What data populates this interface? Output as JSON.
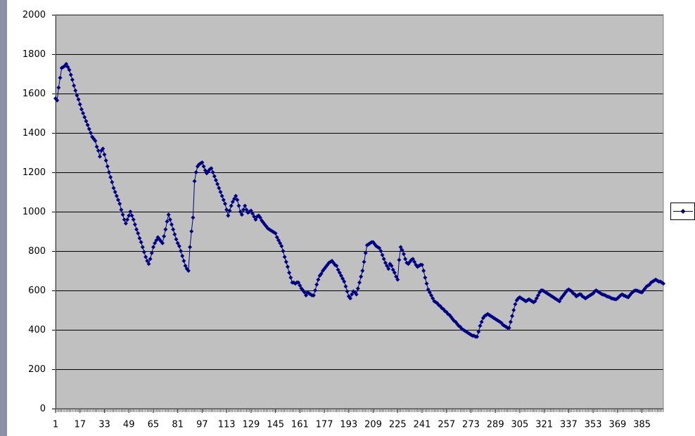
{
  "chart_data": {
    "type": "line",
    "color": "#000080",
    "grid": true,
    "xlim": [
      1,
      399
    ],
    "xticks": [
      1,
      17,
      33,
      49,
      65,
      81,
      97,
      113,
      129,
      145,
      161,
      177,
      193,
      209,
      225,
      241,
      257,
      273,
      289,
      305,
      321,
      337,
      353,
      369,
      385
    ],
    "ylim": [
      0,
      2000
    ],
    "yticks": [
      0,
      200,
      400,
      600,
      800,
      1000,
      1200,
      1400,
      1600,
      1800,
      2000
    ],
    "x": [
      1,
      2,
      3,
      4,
      5,
      6,
      7,
      8,
      9,
      10,
      11,
      12,
      13,
      14,
      15,
      16,
      17,
      18,
      19,
      20,
      21,
      22,
      23,
      24,
      25,
      26,
      27,
      28,
      29,
      30,
      31,
      32,
      33,
      34,
      35,
      36,
      37,
      38,
      39,
      40,
      41,
      42,
      43,
      44,
      45,
      46,
      47,
      48,
      49,
      50,
      51,
      52,
      53,
      54,
      55,
      56,
      57,
      58,
      59,
      60,
      61,
      62,
      63,
      64,
      65,
      66,
      67,
      68,
      69,
      70,
      71,
      72,
      73,
      74,
      75,
      76,
      77,
      78,
      79,
      80,
      81,
      82,
      83,
      84,
      85,
      86,
      87,
      88,
      89,
      90,
      91,
      92,
      93,
      94,
      95,
      96,
      97,
      98,
      99,
      100,
      101,
      102,
      103,
      104,
      105,
      106,
      107,
      108,
      109,
      110,
      111,
      112,
      113,
      114,
      115,
      116,
      117,
      118,
      119,
      120,
      121,
      122,
      123,
      124,
      125,
      126,
      127,
      128,
      129,
      130,
      131,
      132,
      133,
      134,
      135,
      136,
      137,
      138,
      139,
      140,
      141,
      142,
      143,
      144,
      145,
      146,
      147,
      148,
      149,
      150,
      151,
      152,
      153,
      154,
      155,
      156,
      157,
      158,
      159,
      160,
      161,
      162,
      163,
      164,
      165,
      166,
      167,
      168,
      169,
      170,
      171,
      172,
      173,
      174,
      175,
      176,
      177,
      178,
      179,
      180,
      181,
      182,
      183,
      184,
      185,
      186,
      187,
      188,
      189,
      190,
      191,
      192,
      193,
      194,
      195,
      196,
      197,
      198,
      199,
      200,
      201,
      202,
      203,
      204,
      205,
      206,
      207,
      208,
      209,
      210,
      211,
      212,
      213,
      214,
      215,
      216,
      217,
      218,
      219,
      220,
      221,
      222,
      223,
      224,
      225,
      226,
      227,
      228,
      229,
      230,
      231,
      232,
      233,
      234,
      235,
      236,
      237,
      238,
      239,
      240,
      241,
      242,
      243,
      244,
      245,
      246,
      247,
      248,
      249,
      250,
      251,
      252,
      253,
      254,
      255,
      256,
      257,
      258,
      259,
      260,
      261,
      262,
      263,
      264,
      265,
      266,
      267,
      268,
      269,
      270,
      271,
      272,
      273,
      274,
      275,
      276,
      277,
      278,
      279,
      280,
      281,
      282,
      283,
      284,
      285,
      286,
      287,
      288,
      289,
      290,
      291,
      292,
      293,
      294,
      295,
      296,
      297,
      298,
      299,
      300,
      301,
      302,
      303,
      304,
      305,
      306,
      307,
      308,
      309,
      310,
      311,
      312,
      313,
      314,
      315,
      316,
      317,
      318,
      319,
      320,
      321,
      322,
      323,
      324,
      325,
      326,
      327,
      328,
      329,
      330,
      331,
      332,
      333,
      334,
      335,
      336,
      337,
      338,
      339,
      340,
      341,
      342,
      343,
      344,
      345,
      346,
      347,
      348,
      349,
      350,
      351,
      352,
      353,
      354,
      355,
      356,
      357,
      358,
      359,
      360,
      361,
      362,
      363,
      364,
      365,
      366,
      367,
      368,
      369,
      370,
      371,
      372,
      373,
      374,
      375,
      376,
      377,
      378,
      379,
      380,
      381,
      382,
      383,
      384,
      385,
      386,
      387,
      388,
      389,
      390,
      391,
      392,
      393,
      394,
      395,
      396,
      397,
      398,
      399
    ],
    "values": [
      1575,
      1565,
      1630,
      1680,
      1730,
      1735,
      1740,
      1750,
      1735,
      1720,
      1695,
      1670,
      1640,
      1615,
      1590,
      1570,
      1545,
      1520,
      1500,
      1480,
      1460,
      1440,
      1420,
      1400,
      1380,
      1370,
      1360,
      1330,
      1310,
      1280,
      1310,
      1320,
      1290,
      1260,
      1230,
      1200,
      1175,
      1150,
      1120,
      1100,
      1080,
      1060,
      1040,
      1010,
      985,
      960,
      940,
      960,
      980,
      1000,
      980,
      960,
      935,
      910,
      890,
      865,
      845,
      820,
      795,
      770,
      750,
      735,
      760,
      790,
      820,
      840,
      855,
      870,
      860,
      850,
      840,
      875,
      910,
      950,
      985,
      960,
      935,
      910,
      885,
      860,
      840,
      825,
      800,
      775,
      750,
      725,
      710,
      700,
      820,
      900,
      970,
      1155,
      1200,
      1230,
      1240,
      1245,
      1250,
      1230,
      1210,
      1195,
      1205,
      1215,
      1220,
      1200,
      1180,
      1160,
      1140,
      1120,
      1100,
      1080,
      1060,
      1040,
      1010,
      980,
      1005,
      1030,
      1050,
      1065,
      1080,
      1060,
      1030,
      1000,
      985,
      1010,
      1030,
      1010,
      995,
      1000,
      1005,
      990,
      975,
      960,
      975,
      980,
      970,
      955,
      945,
      935,
      925,
      915,
      910,
      905,
      900,
      895,
      890,
      870,
      855,
      840,
      825,
      800,
      770,
      745,
      720,
      690,
      665,
      640,
      640,
      635,
      640,
      640,
      625,
      610,
      600,
      590,
      575,
      590,
      585,
      580,
      575,
      575,
      600,
      630,
      655,
      675,
      685,
      700,
      710,
      720,
      730,
      740,
      745,
      750,
      740,
      730,
      725,
      705,
      690,
      675,
      660,
      645,
      620,
      595,
      570,
      560,
      580,
      595,
      590,
      580,
      610,
      640,
      670,
      700,
      745,
      790,
      830,
      835,
      840,
      845,
      845,
      835,
      825,
      820,
      815,
      800,
      780,
      760,
      740,
      725,
      710,
      735,
      725,
      705,
      690,
      670,
      655,
      755,
      820,
      805,
      785,
      760,
      740,
      735,
      745,
      755,
      760,
      745,
      730,
      720,
      725,
      730,
      730,
      700,
      665,
      635,
      605,
      590,
      575,
      560,
      545,
      540,
      535,
      525,
      520,
      510,
      505,
      495,
      490,
      480,
      475,
      465,
      455,
      445,
      440,
      430,
      420,
      415,
      405,
      400,
      395,
      390,
      385,
      380,
      375,
      370,
      370,
      365,
      365,
      390,
      420,
      440,
      460,
      470,
      475,
      480,
      475,
      470,
      465,
      460,
      455,
      450,
      445,
      440,
      435,
      425,
      420,
      415,
      410,
      410,
      440,
      470,
      500,
      530,
      550,
      560,
      565,
      560,
      555,
      550,
      545,
      550,
      555,
      550,
      545,
      540,
      545,
      560,
      575,
      590,
      600,
      600,
      595,
      590,
      585,
      580,
      575,
      570,
      565,
      560,
      555,
      550,
      545,
      560,
      570,
      580,
      590,
      600,
      605,
      600,
      595,
      585,
      580,
      570,
      575,
      580,
      580,
      570,
      565,
      560,
      565,
      570,
      575,
      580,
      585,
      595,
      600,
      595,
      590,
      585,
      580,
      578,
      575,
      570,
      568,
      565,
      560,
      558,
      556,
      555,
      560,
      568,
      575,
      580,
      575,
      572,
      568,
      565,
      575,
      585,
      592,
      598,
      600,
      598,
      595,
      592,
      590,
      600,
      610,
      620,
      625,
      630,
      640,
      645,
      650,
      655,
      650,
      645,
      645,
      640,
      635
    ]
  }
}
